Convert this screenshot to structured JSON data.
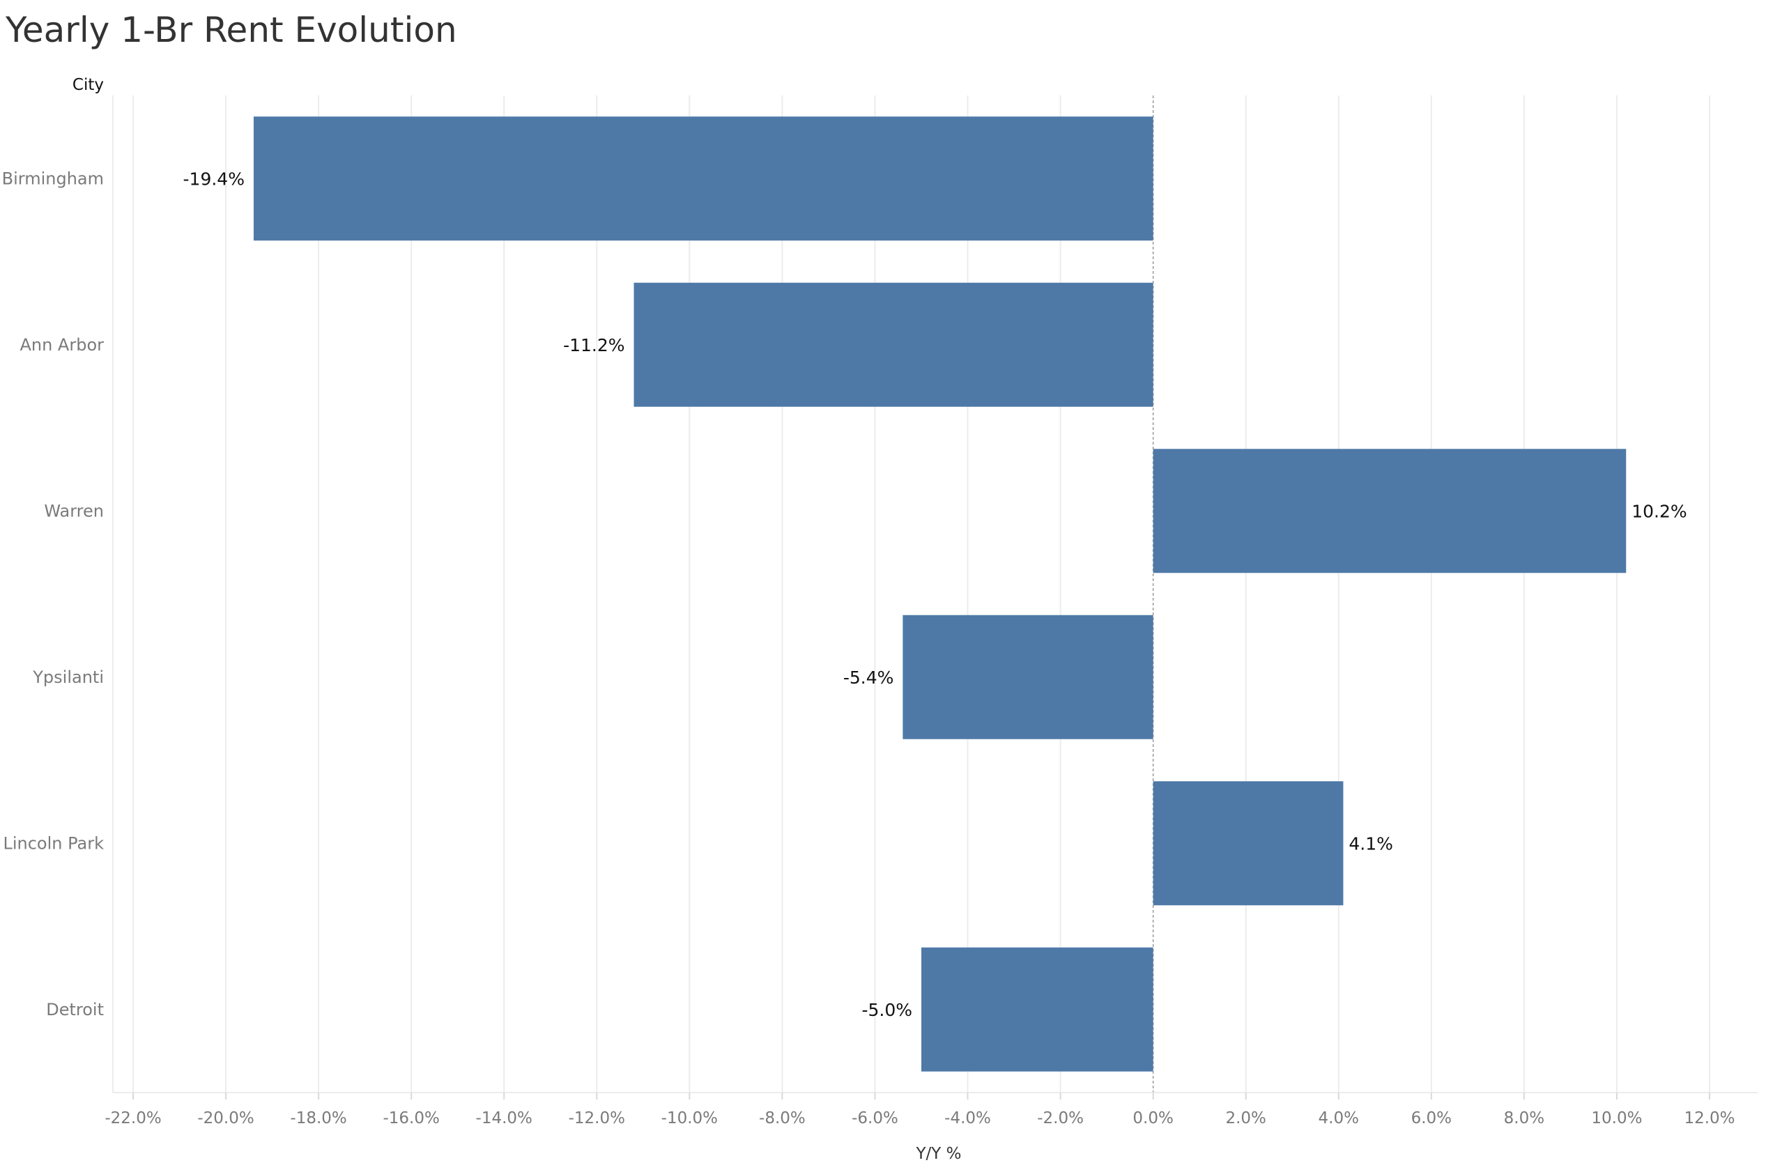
{
  "chart_data": {
    "type": "bar",
    "orientation": "horizontal",
    "title": "Yearly 1-Br Rent Evolution",
    "row_header": "City",
    "xlabel": "Y/Y %",
    "categories": [
      "Birmingham",
      "Ann Arbor",
      "Warren",
      "Ypsilanti",
      "Lincoln Park",
      "Detroit"
    ],
    "values": [
      -19.4,
      -11.2,
      10.2,
      -5.4,
      4.1,
      -5.0
    ],
    "value_labels": [
      "-19.4%",
      "-11.2%",
      "10.2%",
      "-5.4%",
      "4.1%",
      "-5.0%"
    ],
    "xlim": [
      -22.0,
      12.0
    ],
    "xticks": [
      -22,
      -20,
      -18,
      -16,
      -14,
      -12,
      -10,
      -8,
      -6,
      -4,
      -2,
      0,
      2,
      4,
      6,
      8,
      10,
      12
    ],
    "xtick_labels": [
      "-22.0%",
      "-20.0%",
      "-18.0%",
      "-16.0%",
      "-14.0%",
      "-12.0%",
      "-10.0%",
      "-8.0%",
      "-6.0%",
      "-4.0%",
      "-2.0%",
      "0.0%",
      "2.0%",
      "4.0%",
      "6.0%",
      "8.0%",
      "10.0%",
      "12.0%"
    ],
    "grid": true,
    "legend": "none",
    "bar_color": "#4e79a7"
  }
}
